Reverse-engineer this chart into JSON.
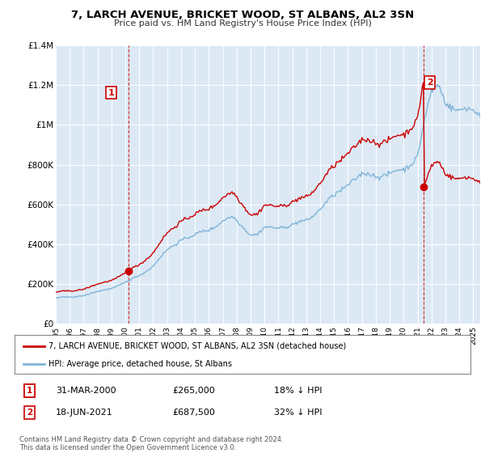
{
  "title": "7, LARCH AVENUE, BRICKET WOOD, ST ALBANS, AL2 3SN",
  "subtitle": "Price paid vs. HM Land Registry's House Price Index (HPI)",
  "ylim": [
    0,
    1400000
  ],
  "xlim_start": 1995.0,
  "xlim_end": 2025.5,
  "yticks": [
    0,
    200000,
    400000,
    600000,
    800000,
    1000000,
    1200000,
    1400000
  ],
  "ytick_labels": [
    "£0",
    "£200K",
    "£400K",
    "£600K",
    "£800K",
    "£1M",
    "£1.2M",
    "£1.4M"
  ],
  "background_color": "#ffffff",
  "plot_bg_color": "#dce9f5",
  "grid_color": "#ffffff",
  "hpi_color": "#7fb4d8",
  "price_color": "#cc0000",
  "transaction1_year": 2000.25,
  "transaction1_price": 265000,
  "transaction1_label": "1",
  "transaction2_year": 2021.46,
  "transaction2_price": 687500,
  "transaction2_label": "2",
  "legend_entry1": "7, LARCH AVENUE, BRICKET WOOD, ST ALBANS, AL2 3SN (detached house)",
  "legend_entry2": "HPI: Average price, detached house, St Albans",
  "ann1_date": "31-MAR-2000",
  "ann1_price": "£265,000",
  "ann1_hpi": "18% ↓ HPI",
  "ann2_date": "18-JUN-2021",
  "ann2_price": "£687,500",
  "ann2_hpi": "32% ↓ HPI",
  "footer1": "Contains HM Land Registry data © Crown copyright and database right 2024.",
  "footer2": "This data is licensed under the Open Government Licence v3.0."
}
